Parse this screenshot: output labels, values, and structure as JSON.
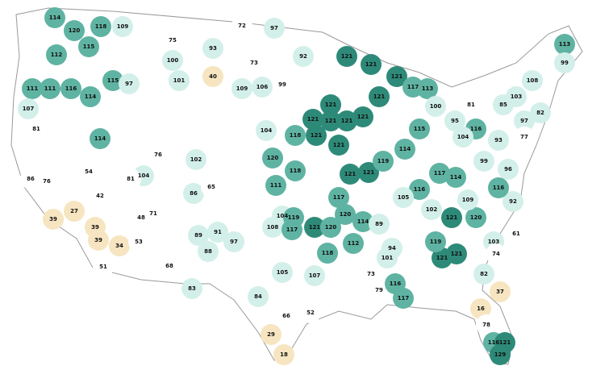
{
  "map": {
    "regions": [
      {
        "label": 114,
        "color": "#5fb3a2"
      },
      {
        "label": 120,
        "color": "#5fb3a2"
      },
      {
        "label": 112,
        "color": "#5fb3a2"
      },
      {
        "label": 115,
        "color": "#5fb3a2"
      },
      {
        "label": 118,
        "color": "#5fb3a2"
      },
      {
        "label": 111,
        "color": "#5fb3a2"
      },
      {
        "label": 111,
        "color": "#5fb3a2"
      },
      {
        "label": 116,
        "color": "#5fb3a2"
      },
      {
        "label": 114,
        "color": "#5fb3a2"
      },
      {
        "label": 107,
        "color": "#d3efe9"
      },
      {
        "label": 81,
        "color": "#ffffff"
      },
      {
        "label": 86,
        "color": "#ffffff"
      },
      {
        "label": 76,
        "color": "#ffffff"
      },
      {
        "label": 27,
        "color": "#f6e5c0"
      },
      {
        "label": 39,
        "color": "#f6e5c0"
      },
      {
        "label": 39,
        "color": "#f6e5c0"
      },
      {
        "label": 34,
        "color": "#f6e5c0"
      },
      {
        "label": 39,
        "color": "#f6e5c0"
      },
      {
        "label": 51,
        "color": "#ffffff"
      },
      {
        "label": 114,
        "color": "#5fb3a2"
      },
      {
        "label": 54,
        "color": "#ffffff"
      },
      {
        "label": 42,
        "color": "#ffffff"
      },
      {
        "label": 115,
        "color": "#5fb3a2"
      },
      {
        "label": 97,
        "color": "#d3efe9"
      },
      {
        "label": 109,
        "color": "#d3efe9"
      },
      {
        "label": 75,
        "color": "#ffffff"
      },
      {
        "label": 100,
        "color": "#d3efe9"
      },
      {
        "label": 93,
        "color": "#d3efe9"
      },
      {
        "label": 40,
        "color": "#f6e5c0"
      },
      {
        "label": 101,
        "color": "#d3efe9"
      },
      {
        "label": 104,
        "color": "#d3efe9"
      },
      {
        "label": 81,
        "color": "#ffffff"
      },
      {
        "label": 76,
        "color": "#ffffff"
      },
      {
        "label": 71,
        "color": "#ffffff"
      },
      {
        "label": 48,
        "color": "#ffffff"
      },
      {
        "label": 53,
        "color": "#ffffff"
      },
      {
        "label": 68,
        "color": "#ffffff"
      },
      {
        "label": 86,
        "color": "#d3efe9"
      },
      {
        "label": 102,
        "color": "#d3efe9"
      },
      {
        "label": 65,
        "color": "#ffffff"
      },
      {
        "label": 91,
        "color": "#d3efe9"
      },
      {
        "label": 89,
        "color": "#d3efe9"
      },
      {
        "label": 88,
        "color": "#d3efe9"
      },
      {
        "label": 83,
        "color": "#d3efe9"
      },
      {
        "label": 97,
        "color": "#d3efe9"
      },
      {
        "label": 108,
        "color": "#d3efe9"
      },
      {
        "label": 105,
        "color": "#d3efe9"
      },
      {
        "label": 84,
        "color": "#d3efe9"
      },
      {
        "label": 66,
        "color": "#ffffff"
      },
      {
        "label": 29,
        "color": "#f6e5c0"
      },
      {
        "label": 18,
        "color": "#f6e5c0"
      },
      {
        "label": 52,
        "color": "#ffffff"
      },
      {
        "label": 107,
        "color": "#d3efe9"
      },
      {
        "label": 72,
        "color": "#ffffff"
      },
      {
        "label": 97,
        "color": "#d3efe9"
      },
      {
        "label": 92,
        "color": "#d3efe9"
      },
      {
        "label": 73,
        "color": "#ffffff"
      },
      {
        "label": 99,
        "color": "#ffffff"
      },
      {
        "label": 106,
        "color": "#d3efe9"
      },
      {
        "label": 109,
        "color": "#d3efe9"
      },
      {
        "label": 104,
        "color": "#d3efe9"
      },
      {
        "label": 118,
        "color": "#5fb3a2"
      },
      {
        "label": 120,
        "color": "#5fb3a2"
      },
      {
        "label": 111,
        "color": "#5fb3a2"
      },
      {
        "label": 118,
        "color": "#5fb3a2"
      },
      {
        "label": 104,
        "color": "#d3efe9"
      },
      {
        "label": 121,
        "color": "#2e8a78"
      },
      {
        "label": 119,
        "color": "#5fb3a2"
      },
      {
        "label": 117,
        "color": "#5fb3a2"
      },
      {
        "label": 120,
        "color": "#5fb3a2"
      },
      {
        "label": 118,
        "color": "#5fb3a2"
      },
      {
        "label": 121,
        "color": "#2e8a78"
      },
      {
        "label": 121,
        "color": "#2e8a78"
      },
      {
        "label": 121,
        "color": "#2e8a78"
      },
      {
        "label": 121,
        "color": "#2e8a78"
      },
      {
        "label": 121,
        "color": "#2e8a78"
      },
      {
        "label": 121,
        "color": "#2e8a78"
      },
      {
        "label": 121,
        "color": "#2e8a78"
      },
      {
        "label": 121,
        "color": "#2e8a78"
      },
      {
        "label": 121,
        "color": "#2e8a78"
      },
      {
        "label": 121,
        "color": "#2e8a78"
      },
      {
        "label": 121,
        "color": "#2e8a78"
      },
      {
        "label": 121,
        "color": "#2e8a78"
      },
      {
        "label": 121,
        "color": "#2e8a78"
      },
      {
        "label": 119,
        "color": "#5fb3a2"
      },
      {
        "label": 114,
        "color": "#5fb3a2"
      },
      {
        "label": 117,
        "color": "#5fb3a2"
      },
      {
        "label": 113,
        "color": "#5fb3a2"
      },
      {
        "label": 100,
        "color": "#d3efe9"
      },
      {
        "label": 117,
        "color": "#5fb3a2"
      },
      {
        "label": 120,
        "color": "#5fb3a2"
      },
      {
        "label": 114,
        "color": "#5fb3a2"
      },
      {
        "label": 89,
        "color": "#d3efe9"
      },
      {
        "label": 112,
        "color": "#5fb3a2"
      },
      {
        "label": 101,
        "color": "#d3efe9"
      },
      {
        "label": 121,
        "color": "#2e8a78"
      },
      {
        "label": 120,
        "color": "#5fb3a2"
      },
      {
        "label": 109,
        "color": "#d3efe9"
      },
      {
        "label": 121,
        "color": "#2e8a78"
      },
      {
        "label": 121,
        "color": "#2e8a78"
      },
      {
        "label": 119,
        "color": "#5fb3a2"
      },
      {
        "label": 103,
        "color": "#d3efe9"
      },
      {
        "label": 82,
        "color": "#d3efe9"
      },
      {
        "label": 74,
        "color": "#ffffff"
      },
      {
        "label": 37,
        "color": "#f6e5c0"
      },
      {
        "label": 16,
        "color": "#f6e5c0"
      },
      {
        "label": 78,
        "color": "#ffffff"
      },
      {
        "label": 116,
        "color": "#5fb3a2"
      },
      {
        "label": 121,
        "color": "#2e8a78"
      },
      {
        "label": 129,
        "color": "#2e8a78"
      },
      {
        "label": 79,
        "color": "#ffffff"
      },
      {
        "label": 73,
        "color": "#ffffff"
      },
      {
        "label": 116,
        "color": "#5fb3a2"
      },
      {
        "label": 94,
        "color": "#d3efe9"
      },
      {
        "label": 117,
        "color": "#5fb3a2"
      },
      {
        "label": 113,
        "color": "#5fb3a2"
      },
      {
        "label": 99,
        "color": "#d3efe9"
      },
      {
        "label": 108,
        "color": "#d3efe9"
      },
      {
        "label": 103,
        "color": "#d3efe9"
      },
      {
        "label": 85,
        "color": "#d3efe9"
      },
      {
        "label": 97,
        "color": "#d3efe9"
      },
      {
        "label": 82,
        "color": "#d3efe9"
      },
      {
        "label": 77,
        "color": "#ffffff"
      },
      {
        "label": 93,
        "color": "#d3efe9"
      },
      {
        "label": 116,
        "color": "#5fb3a2"
      },
      {
        "label": 104,
        "color": "#d3efe9"
      },
      {
        "label": 99,
        "color": "#d3efe9"
      },
      {
        "label": 96,
        "color": "#d3efe9"
      },
      {
        "label": 92,
        "color": "#d3efe9"
      },
      {
        "label": 116,
        "color": "#5fb3a2"
      },
      {
        "label": 61,
        "color": "#ffffff"
      },
      {
        "label": 81,
        "color": "#ffffff"
      },
      {
        "label": 95,
        "color": "#d3efe9"
      },
      {
        "label": 115,
        "color": "#5fb3a2"
      },
      {
        "label": 117,
        "color": "#5fb3a2"
      },
      {
        "label": 116,
        "color": "#5fb3a2"
      },
      {
        "label": 105,
        "color": "#d3efe9"
      },
      {
        "label": 102,
        "color": "#d3efe9"
      },
      {
        "label": 114,
        "color": "#5fb3a2"
      }
    ]
  }
}
